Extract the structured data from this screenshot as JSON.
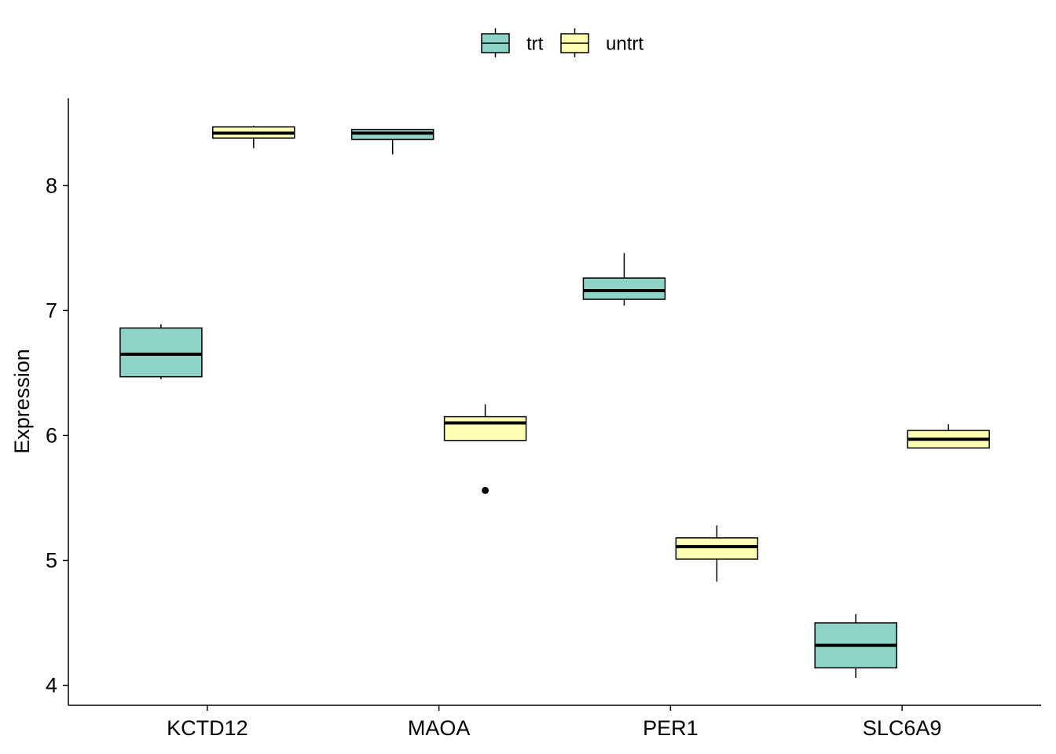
{
  "chart_data": {
    "type": "boxplot",
    "y_label": "Expression",
    "categories": [
      "KCTD12",
      "MAOA",
      "PER1",
      "SLC6A9"
    ],
    "ylim": [
      3.84,
      8.7
    ],
    "yticks": [
      4,
      5,
      6,
      7,
      8
    ],
    "legend": "top",
    "series": [
      {
        "name": "trt",
        "color": "#8DD3C7",
        "values": [
          {
            "low": 6.45,
            "q1": 6.47,
            "median": 6.65,
            "q3": 6.86,
            "high": 6.89
          },
          {
            "low": 8.25,
            "q1": 8.37,
            "median": 8.42,
            "q3": 8.45,
            "high": 8.45
          },
          {
            "low": 7.04,
            "q1": 7.09,
            "median": 7.16,
            "q3": 7.26,
            "high": 7.46
          },
          {
            "low": 4.06,
            "q1": 4.14,
            "median": 4.32,
            "q3": 4.5,
            "high": 4.57
          }
        ]
      },
      {
        "name": "untrt",
        "color": "#FFFFB3",
        "values": [
          {
            "low": 8.3,
            "q1": 8.38,
            "median": 8.42,
            "q3": 8.47,
            "high": 8.48
          },
          {
            "low": 5.96,
            "q1": 5.96,
            "median": 6.1,
            "q3": 6.15,
            "high": 6.25,
            "outliers": [
              5.56
            ]
          },
          {
            "low": 4.83,
            "q1": 5.01,
            "median": 5.11,
            "q3": 5.18,
            "high": 5.28
          },
          {
            "low": 5.9,
            "q1": 5.9,
            "median": 5.97,
            "q3": 6.04,
            "high": 6.09
          }
        ]
      }
    ]
  }
}
